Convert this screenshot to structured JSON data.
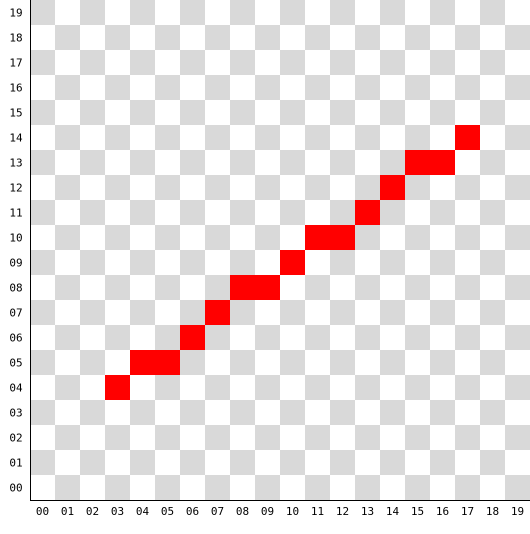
{
  "grid": {
    "columns": 20,
    "rows": 20,
    "x_labels": [
      "00",
      "01",
      "02",
      "03",
      "04",
      "05",
      "06",
      "07",
      "08",
      "09",
      "10",
      "11",
      "12",
      "13",
      "14",
      "15",
      "16",
      "17",
      "18",
      "19"
    ],
    "y_labels": [
      "00",
      "01",
      "02",
      "03",
      "04",
      "05",
      "06",
      "07",
      "08",
      "09",
      "10",
      "11",
      "12",
      "13",
      "14",
      "15",
      "16",
      "17",
      "18",
      "19"
    ],
    "checker_light": "#ffffff",
    "checker_dark": "#d9d9d9",
    "axis_color": "#000000"
  },
  "line": {
    "color": "#ff0000",
    "cells": [
      [
        3,
        4
      ],
      [
        4,
        5
      ],
      [
        5,
        5
      ],
      [
        6,
        6
      ],
      [
        7,
        7
      ],
      [
        8,
        8
      ],
      [
        9,
        8
      ],
      [
        10,
        9
      ],
      [
        11,
        10
      ],
      [
        12,
        10
      ],
      [
        13,
        11
      ],
      [
        14,
        12
      ],
      [
        15,
        13
      ],
      [
        16,
        13
      ],
      [
        17,
        14
      ]
    ]
  }
}
